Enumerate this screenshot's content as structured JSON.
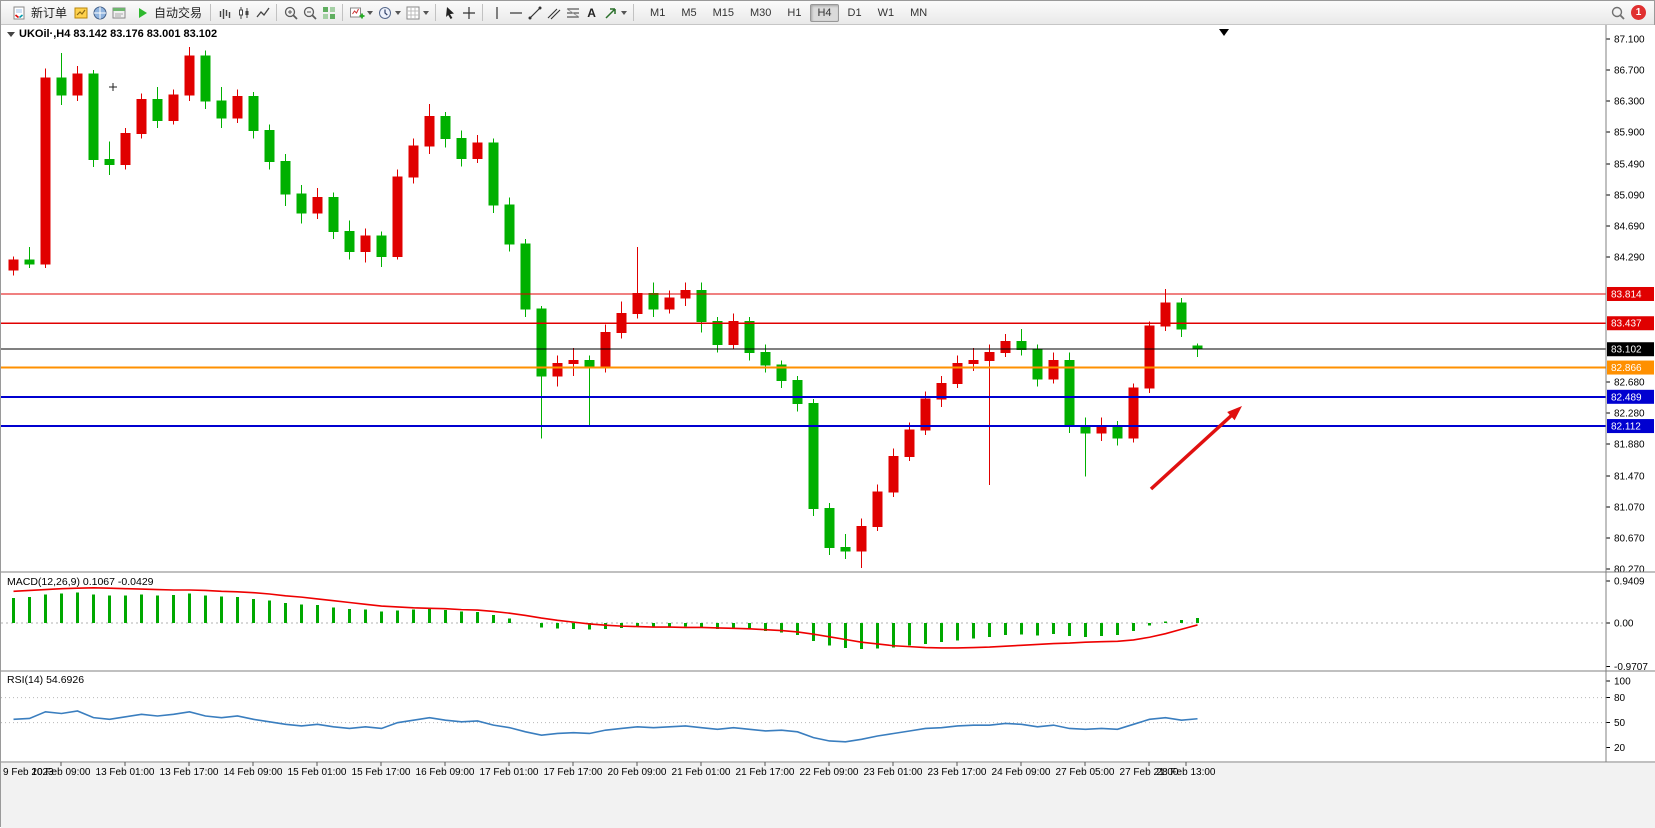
{
  "toolbar": {
    "new_order": "新订单",
    "autotrading": "自动交易",
    "text_tool": "A",
    "timeframes": [
      "M1",
      "M5",
      "M15",
      "M30",
      "H1",
      "H4",
      "D1",
      "W1",
      "MN"
    ],
    "active_timeframe": "H4",
    "notification_count": "1"
  },
  "chart_data": {
    "type": "candlestick",
    "symbol": "UKOil",
    "period": "H4",
    "title": "UKOil·,H4  83.142 83.176 83.001 83.102",
    "ohlc_latest": {
      "open": "83.142",
      "high": "83.176",
      "low": "83.001",
      "close": "83.102"
    },
    "colors": {
      "up": "#e00000",
      "down": "#00b000",
      "macd_hist": "#00a800",
      "macd_signal": "#ee0000",
      "rsi_line": "#3a7ebf",
      "arrow": "#e01010",
      "level_red": "#e00000",
      "level_blue": "#0000d0",
      "level_orange": "#ff9000",
      "level_black": "#000000"
    },
    "price_axis": {
      "min": 80.27,
      "max": 87.1,
      "ticks": [
        "87.100",
        "86.700",
        "86.300",
        "85.900",
        "85.490",
        "85.090",
        "84.690",
        "84.290",
        "82.680",
        "82.280",
        "81.880",
        "81.470",
        "81.070",
        "80.670",
        "80.270"
      ]
    },
    "candles": [
      [
        84.12,
        84.3,
        84.05,
        84.25
      ],
      [
        84.25,
        84.42,
        84.15,
        84.2
      ],
      [
        84.2,
        86.72,
        84.15,
        86.6
      ],
      [
        86.6,
        86.92,
        86.25,
        86.38
      ],
      [
        86.38,
        86.75,
        86.3,
        86.65
      ],
      [
        86.65,
        86.7,
        85.45,
        85.55
      ],
      [
        85.55,
        85.78,
        85.35,
        85.48
      ],
      [
        85.48,
        85.95,
        85.42,
        85.88
      ],
      [
        85.88,
        86.4,
        85.82,
        86.32
      ],
      [
        86.32,
        86.48,
        85.95,
        86.05
      ],
      [
        86.05,
        86.45,
        86.0,
        86.38
      ],
      [
        86.38,
        87.0,
        86.3,
        86.88
      ],
      [
        86.88,
        86.95,
        86.2,
        86.3
      ],
      [
        86.3,
        86.48,
        85.95,
        86.08
      ],
      [
        86.08,
        86.45,
        86.02,
        86.36
      ],
      [
        86.36,
        86.42,
        85.82,
        85.92
      ],
      [
        85.92,
        86.0,
        85.42,
        85.52
      ],
      [
        85.52,
        85.62,
        84.95,
        85.1
      ],
      [
        85.1,
        85.22,
        84.72,
        84.86
      ],
      [
        84.86,
        85.18,
        84.78,
        85.06
      ],
      [
        85.06,
        85.12,
        84.52,
        84.62
      ],
      [
        84.62,
        84.76,
        84.26,
        84.36
      ],
      [
        84.36,
        84.66,
        84.22,
        84.56
      ],
      [
        84.56,
        84.62,
        84.16,
        84.3
      ],
      [
        84.3,
        85.42,
        84.26,
        85.32
      ],
      [
        85.32,
        85.82,
        85.24,
        85.72
      ],
      [
        85.72,
        86.26,
        85.62,
        86.1
      ],
      [
        86.1,
        86.16,
        85.7,
        85.82
      ],
      [
        85.82,
        85.92,
        85.46,
        85.56
      ],
      [
        85.56,
        85.86,
        85.5,
        85.76
      ],
      [
        85.76,
        85.82,
        84.86,
        84.96
      ],
      [
        84.96,
        85.06,
        84.36,
        84.46
      ],
      [
        84.46,
        84.52,
        83.52,
        83.62
      ],
      [
        83.62,
        83.66,
        81.95,
        82.76
      ],
      [
        82.76,
        83.02,
        82.62,
        82.92
      ],
      [
        82.92,
        83.12,
        82.76,
        82.96
      ],
      [
        82.96,
        83.02,
        82.1,
        82.86
      ],
      [
        82.86,
        83.42,
        82.8,
        83.32
      ],
      [
        83.32,
        83.72,
        83.24,
        83.56
      ],
      [
        83.56,
        84.42,
        83.5,
        83.82
      ],
      [
        83.82,
        83.96,
        83.52,
        83.62
      ],
      [
        83.62,
        83.86,
        83.56,
        83.76
      ],
      [
        83.76,
        83.96,
        83.66,
        83.86
      ],
      [
        83.86,
        83.96,
        83.32,
        83.46
      ],
      [
        83.46,
        83.52,
        83.06,
        83.16
      ],
      [
        83.16,
        83.56,
        83.1,
        83.46
      ],
      [
        83.46,
        83.52,
        82.96,
        83.06
      ],
      [
        83.06,
        83.16,
        82.8,
        82.9
      ],
      [
        82.9,
        82.96,
        82.6,
        82.7
      ],
      [
        82.7,
        82.76,
        82.3,
        82.4
      ],
      [
        82.4,
        82.46,
        80.95,
        81.05
      ],
      [
        81.05,
        81.12,
        80.45,
        80.55
      ],
      [
        80.55,
        80.72,
        80.4,
        80.5
      ],
      [
        80.5,
        80.92,
        80.28,
        80.82
      ],
      [
        80.82,
        81.36,
        80.76,
        81.26
      ],
      [
        81.26,
        81.82,
        81.2,
        81.72
      ],
      [
        81.72,
        82.16,
        81.66,
        82.06
      ],
      [
        82.06,
        82.56,
        82.0,
        82.46
      ],
      [
        82.46,
        82.76,
        82.36,
        82.66
      ],
      [
        82.66,
        83.02,
        82.6,
        82.92
      ],
      [
        82.92,
        83.12,
        82.82,
        82.96
      ],
      [
        82.96,
        83.16,
        81.35,
        83.06
      ],
      [
        83.06,
        83.3,
        83.0,
        83.2
      ],
      [
        83.2,
        83.36,
        83.02,
        83.1
      ],
      [
        83.1,
        83.16,
        82.62,
        82.72
      ],
      [
        82.72,
        83.06,
        82.66,
        82.96
      ],
      [
        82.96,
        83.06,
        82.02,
        82.12
      ],
      [
        82.12,
        82.22,
        81.46,
        82.02
      ],
      [
        82.02,
        82.22,
        81.92,
        82.12
      ],
      [
        82.12,
        82.18,
        81.86,
        81.96
      ],
      [
        81.96,
        82.66,
        81.9,
        82.6
      ],
      [
        82.6,
        83.46,
        82.54,
        83.4
      ],
      [
        83.4,
        83.88,
        83.34,
        83.7
      ],
      [
        83.7,
        83.76,
        83.26,
        83.36
      ],
      [
        83.142,
        83.176,
        83.001,
        83.102
      ]
    ],
    "levels": [
      {
        "label": "83.814",
        "price": 83.814,
        "color": "#e00000",
        "width": 1.3
      },
      {
        "label": "83.437",
        "price": 83.437,
        "color": "#e00000",
        "width": 1.3
      },
      {
        "label": "83.102",
        "price": 83.102,
        "color": "#000000",
        "width": 1
      },
      {
        "label": "82.866",
        "price": 82.866,
        "color": "#ff9000",
        "width": 2
      },
      {
        "label": "82.489",
        "price": 82.489,
        "color": "#0000d0",
        "width": 2
      },
      {
        "label": "82.112",
        "price": 82.112,
        "color": "#0000d0",
        "width": 2
      }
    ],
    "macd": {
      "label": "MACD(12,26,9) 0.1067 -0.0429",
      "axis_labels": [
        "0.9409",
        "0.00",
        "-0.9707"
      ],
      "histogram": [
        0.56,
        0.58,
        0.64,
        0.66,
        0.68,
        0.64,
        0.62,
        0.62,
        0.64,
        0.62,
        0.63,
        0.66,
        0.62,
        0.59,
        0.58,
        0.54,
        0.5,
        0.45,
        0.41,
        0.4,
        0.35,
        0.31,
        0.3,
        0.26,
        0.28,
        0.3,
        0.32,
        0.29,
        0.26,
        0.25,
        0.18,
        0.1,
        0.0,
        -0.1,
        -0.12,
        -0.13,
        -0.15,
        -0.13,
        -0.11,
        -0.09,
        -0.1,
        -0.09,
        -0.08,
        -0.11,
        -0.14,
        -0.13,
        -0.15,
        -0.18,
        -0.21,
        -0.27,
        -0.4,
        -0.5,
        -0.56,
        -0.58,
        -0.57,
        -0.55,
        -0.51,
        -0.47,
        -0.43,
        -0.39,
        -0.35,
        -0.31,
        -0.27,
        -0.26,
        -0.28,
        -0.25,
        -0.29,
        -0.31,
        -0.29,
        -0.27,
        -0.18,
        -0.06,
        0.03,
        0.07,
        0.107
      ],
      "signal": [
        0.71,
        0.73,
        0.75,
        0.77,
        0.78,
        0.79,
        0.78,
        0.77,
        0.76,
        0.75,
        0.74,
        0.74,
        0.73,
        0.71,
        0.7,
        0.68,
        0.65,
        0.61,
        0.58,
        0.54,
        0.5,
        0.46,
        0.42,
        0.38,
        0.36,
        0.34,
        0.33,
        0.32,
        0.3,
        0.29,
        0.26,
        0.22,
        0.17,
        0.11,
        0.06,
        0.02,
        -0.02,
        -0.05,
        -0.07,
        -0.08,
        -0.09,
        -0.09,
        -0.1,
        -0.1,
        -0.11,
        -0.12,
        -0.13,
        -0.15,
        -0.17,
        -0.2,
        -0.25,
        -0.31,
        -0.37,
        -0.43,
        -0.47,
        -0.51,
        -0.53,
        -0.55,
        -0.56,
        -0.56,
        -0.55,
        -0.54,
        -0.52,
        -0.5,
        -0.48,
        -0.46,
        -0.45,
        -0.43,
        -0.42,
        -0.41,
        -0.38,
        -0.32,
        -0.24,
        -0.14,
        -0.043
      ]
    },
    "rsi": {
      "label": "RSI(14) 54.6926",
      "axis_labels": [
        "100",
        "80",
        "50",
        "20"
      ],
      "levels": [
        80,
        50
      ],
      "values": [
        54,
        55,
        63,
        61,
        64,
        56,
        54,
        57,
        60,
        58,
        60,
        63,
        58,
        56,
        58,
        54,
        51,
        48,
        46,
        48,
        45,
        43,
        45,
        43,
        50,
        53,
        56,
        53,
        51,
        52,
        47,
        44,
        39,
        35,
        37,
        38,
        37,
        41,
        43,
        45,
        44,
        45,
        46,
        44,
        42,
        44,
        42,
        40,
        41,
        39,
        32,
        28,
        27,
        30,
        34,
        37,
        40,
        43,
        44,
        46,
        47,
        47,
        49,
        48,
        45,
        47,
        43,
        42,
        43,
        42,
        48,
        54,
        56,
        53,
        54.6926
      ]
    },
    "time_labels": [
      "9 Feb 2023",
      "10 Feb 09:00",
      "13 Feb 01:00",
      "13 Feb 17:00",
      "14 Feb 09:00",
      "15 Feb 01:00",
      "15 Feb 17:00",
      "16 Feb 09:00",
      "17 Feb 01:00",
      "17 Feb 17:00",
      "20 Feb 09:00",
      "21 Feb 01:00",
      "21 Feb 17:00",
      "22 Feb 09:00",
      "23 Feb 01:00",
      "23 Feb 17:00",
      "24 Feb 09:00",
      "27 Feb 05:00",
      "27 Feb 21:00",
      "28 Feb 13:00"
    ]
  }
}
